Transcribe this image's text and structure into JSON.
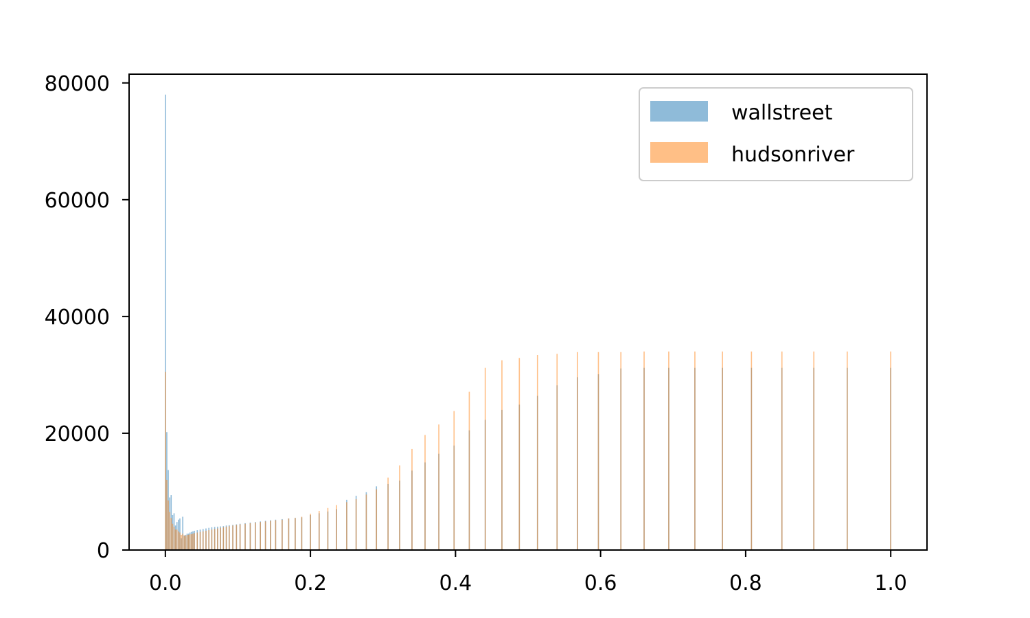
{
  "chart_data": {
    "type": "bar",
    "title": "",
    "xlabel": "",
    "ylabel": "",
    "xlim": [
      -0.05,
      1.05
    ],
    "ylim": [
      0,
      81500
    ],
    "xticks": [
      0.0,
      0.2,
      0.4,
      0.6,
      0.8,
      1.0
    ],
    "xtick_labels": [
      "0.0",
      "0.2",
      "0.4",
      "0.6",
      "0.8",
      "1.0"
    ],
    "yticks": [
      0,
      20000,
      40000,
      60000,
      80000
    ],
    "ytick_labels": [
      "0",
      "20000",
      "40000",
      "60000",
      "80000"
    ],
    "grid": false,
    "legend": "top-right",
    "series": [
      {
        "name": "wallstreet",
        "color": "#1f77b4",
        "opacity": 0.5,
        "x": [
          0.0,
          0.002,
          0.004,
          0.006,
          0.008,
          0.01,
          0.012,
          0.014,
          0.016,
          0.018,
          0.02,
          0.022,
          0.024,
          0.026,
          0.028,
          0.03,
          0.032,
          0.034,
          0.036,
          0.038,
          0.04,
          0.044,
          0.048,
          0.052,
          0.056,
          0.06,
          0.064,
          0.068,
          0.072,
          0.076,
          0.08,
          0.084,
          0.088,
          0.093,
          0.098,
          0.103,
          0.11,
          0.117,
          0.124,
          0.131,
          0.138,
          0.145,
          0.152,
          0.161,
          0.17,
          0.179,
          0.188,
          0.2,
          0.212,
          0.224,
          0.236,
          0.25,
          0.263,
          0.277,
          0.291,
          0.307,
          0.323,
          0.34,
          0.358,
          0.377,
          0.398,
          0.419,
          0.441,
          0.464,
          0.488,
          0.513,
          0.54,
          0.568,
          0.597,
          0.628,
          0.66,
          0.694,
          0.73,
          0.768,
          0.808,
          0.85,
          0.894,
          0.94,
          1.0
        ],
        "values": [
          78000,
          20200,
          13700,
          9000,
          9400,
          6000,
          6300,
          4200,
          4800,
          5200,
          5400,
          2000,
          5700,
          2500,
          2600,
          2800,
          2800,
          3000,
          3100,
          3200,
          3300,
          3400,
          3500,
          3600,
          3700,
          3800,
          3900,
          3950,
          4000,
          4050,
          4100,
          4200,
          4250,
          4300,
          4400,
          4500,
          4600,
          4700,
          4800,
          4900,
          5000,
          5100,
          5200,
          5300,
          5400,
          5500,
          5600,
          6000,
          6300,
          6600,
          7000,
          8600,
          9300,
          9900,
          10900,
          11300,
          11900,
          13600,
          15000,
          16500,
          17900,
          20500,
          22300,
          24000,
          24900,
          26400,
          28200,
          29600,
          30100,
          31100,
          31200,
          31200,
          31200,
          31200,
          31200,
          31200,
          31200,
          31200,
          31200
        ]
      },
      {
        "name": "hudsonriver",
        "color": "#ff7f0e",
        "opacity": 0.5,
        "x": [
          0.0,
          0.002,
          0.004,
          0.006,
          0.008,
          0.01,
          0.012,
          0.014,
          0.016,
          0.018,
          0.02,
          0.022,
          0.024,
          0.026,
          0.028,
          0.03,
          0.032,
          0.034,
          0.036,
          0.038,
          0.04,
          0.044,
          0.048,
          0.052,
          0.056,
          0.06,
          0.064,
          0.068,
          0.072,
          0.076,
          0.08,
          0.084,
          0.088,
          0.093,
          0.098,
          0.103,
          0.11,
          0.117,
          0.124,
          0.131,
          0.138,
          0.145,
          0.152,
          0.161,
          0.17,
          0.179,
          0.188,
          0.2,
          0.212,
          0.224,
          0.236,
          0.25,
          0.263,
          0.277,
          0.291,
          0.307,
          0.323,
          0.34,
          0.358,
          0.377,
          0.398,
          0.419,
          0.441,
          0.464,
          0.488,
          0.513,
          0.54,
          0.568,
          0.597,
          0.628,
          0.66,
          0.694,
          0.73,
          0.768,
          0.808,
          0.85,
          0.894,
          0.94,
          1.0
        ],
        "values": [
          30500,
          12000,
          8500,
          6500,
          5500,
          4500,
          4000,
          3500,
          3500,
          3200,
          3000,
          2600,
          2800,
          2500,
          2400,
          2600,
          2600,
          2700,
          2700,
          2800,
          2900,
          3000,
          3100,
          3200,
          3300,
          3400,
          3500,
          3600,
          3700,
          3800,
          3900,
          4000,
          4100,
          4200,
          4300,
          4400,
          4500,
          4600,
          4700,
          4800,
          4900,
          5000,
          5100,
          5200,
          5400,
          5500,
          5700,
          6200,
          6700,
          7200,
          7700,
          8200,
          8700,
          9500,
          10400,
          12400,
          14500,
          17300,
          19700,
          21500,
          23800,
          27100,
          31200,
          32500,
          32900,
          33400,
          33600,
          33900,
          33900,
          33900,
          34000,
          34000,
          34000,
          34000,
          34000,
          34000,
          34000,
          34000,
          34000
        ]
      }
    ]
  }
}
